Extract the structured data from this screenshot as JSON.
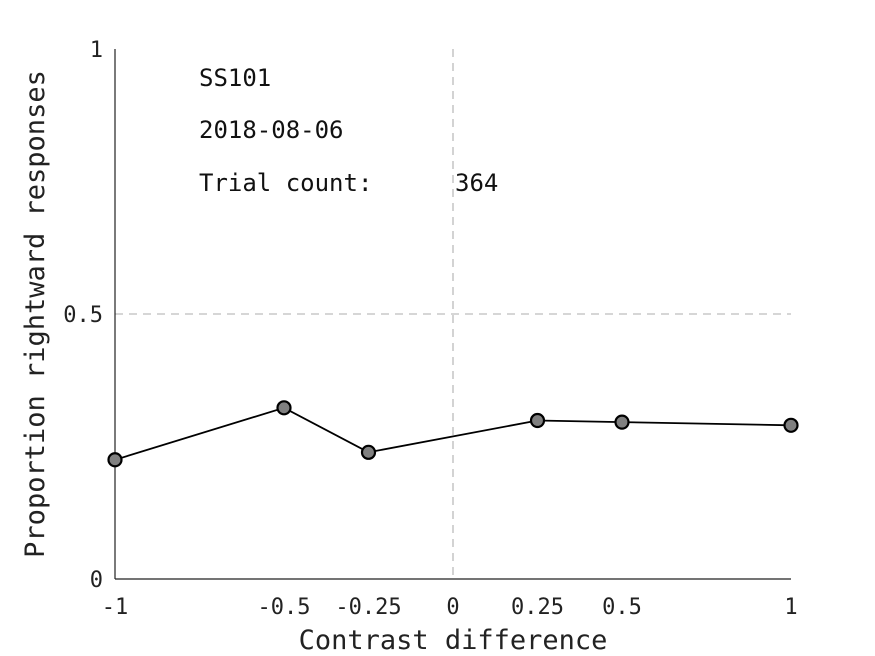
{
  "chart_data": {
    "type": "line",
    "xlabel": "Contrast difference",
    "ylabel": "Proportion rightward responses",
    "xlim": [
      -1,
      1
    ],
    "ylim": [
      0,
      1
    ],
    "x_ticks": [
      -1,
      -0.5,
      -0.25,
      0,
      0.25,
      0.5,
      1
    ],
    "x_tick_labels": [
      "-1",
      "-0.5",
      "-0.25",
      "0",
      "0.25",
      "0.5",
      "1"
    ],
    "y_ticks": [
      0,
      0.5,
      1
    ],
    "y_tick_labels": [
      "0",
      "0.5",
      "1"
    ],
    "reference_lines": {
      "x": 0,
      "y": 0.5
    },
    "grid": false,
    "series": [
      {
        "x": [
          -1,
          -0.5,
          -0.25,
          0.25,
          0.5,
          1
        ],
        "values": [
          0.225,
          0.323,
          0.239,
          0.299,
          0.296,
          0.29
        ]
      }
    ],
    "annotations": {
      "subject": "SS101",
      "date": "2018-08-06",
      "trial_count_label": "Trial count:",
      "trial_count_value": "364"
    }
  }
}
